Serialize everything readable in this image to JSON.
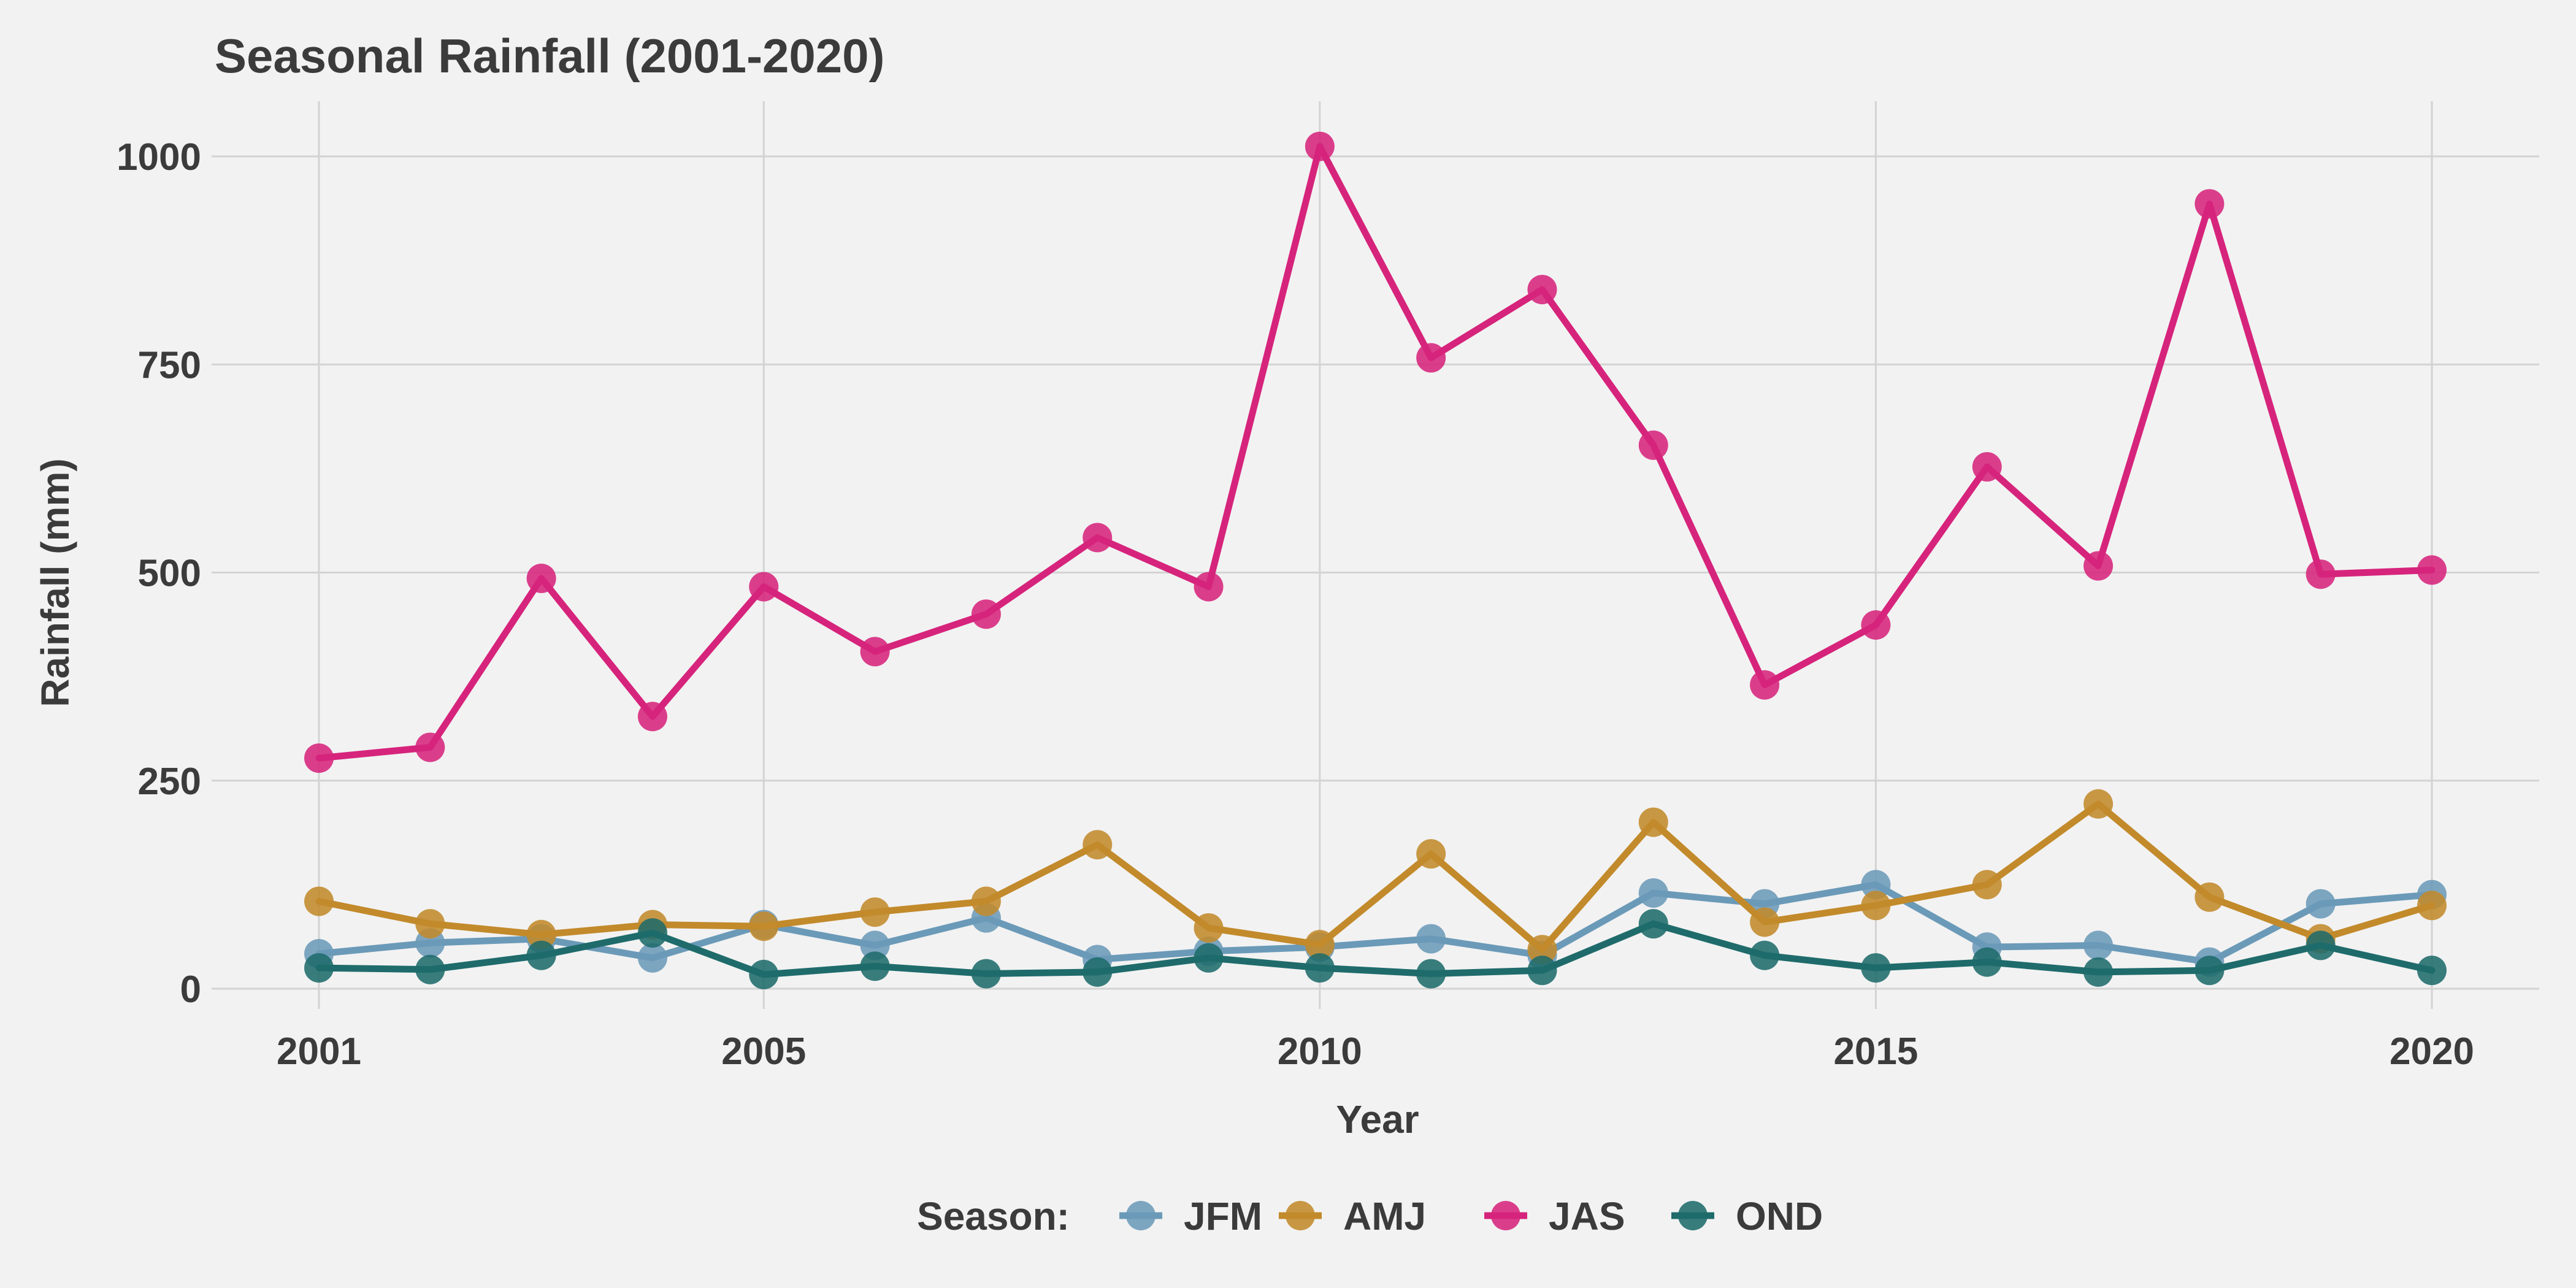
{
  "chart_data": {
    "type": "line",
    "title": "Seasonal Rainfall (2001-2020)",
    "xlabel": "Year",
    "ylabel": "Rainfall (mm)",
    "x": [
      2001,
      2002,
      2003,
      2004,
      2005,
      2006,
      2007,
      2008,
      2009,
      2010,
      2011,
      2012,
      2013,
      2014,
      2015,
      2016,
      2017,
      2018,
      2019,
      2020
    ],
    "xlim": [
      2001,
      2020
    ],
    "ylim": [
      0,
      1000
    ],
    "x_ticks": [
      2001,
      2005,
      2010,
      2015,
      2020
    ],
    "y_ticks": [
      0,
      250,
      500,
      750,
      1000
    ],
    "grid": true,
    "legend": {
      "title": "Season:",
      "position": "bottom"
    },
    "series": [
      {
        "name": "JFM",
        "color": "#6b9ab8",
        "values": [
          42,
          55,
          60,
          37,
          77,
          52,
          85,
          35,
          45,
          50,
          60,
          40,
          115,
          102,
          125,
          50,
          52,
          32,
          102,
          113
        ]
      },
      {
        "name": "AMJ",
        "color": "#c28a2b",
        "values": [
          105,
          78,
          65,
          77,
          75,
          92,
          105,
          173,
          73,
          53,
          162,
          47,
          200,
          80,
          100,
          125,
          222,
          110,
          60,
          100
        ]
      },
      {
        "name": "JAS",
        "color": "#d6247c",
        "values": [
          277,
          290,
          493,
          327,
          483,
          405,
          450,
          542,
          483,
          1012,
          758,
          840,
          653,
          365,
          437,
          627,
          508,
          943,
          498,
          503
        ]
      },
      {
        "name": "OND",
        "color": "#1f6b6b",
        "values": [
          25,
          23,
          40,
          67,
          17,
          27,
          18,
          20,
          37,
          25,
          18,
          22,
          78,
          40,
          25,
          32,
          20,
          22,
          52,
          22
        ]
      }
    ]
  }
}
